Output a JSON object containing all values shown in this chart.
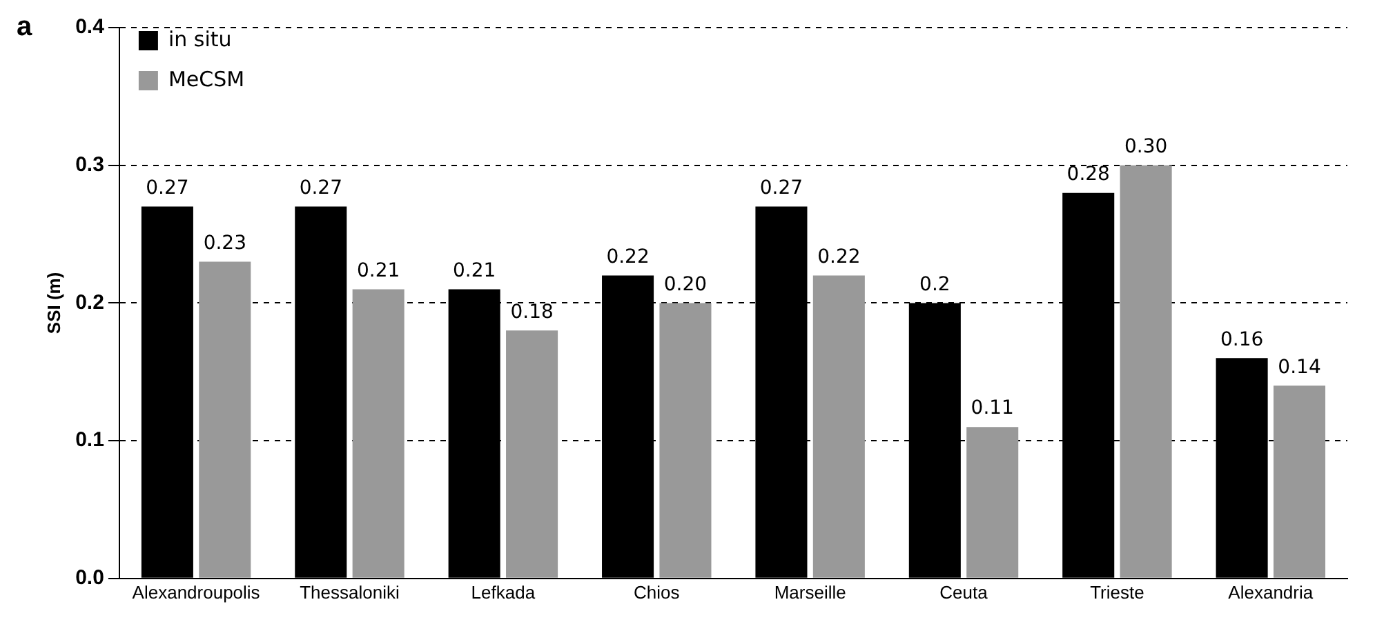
{
  "chart_data": {
    "type": "bar",
    "ylabel": "SSI (m)",
    "annotations": [
      "a"
    ],
    "categories": [
      "Alexandroupolis",
      "Thessaloniki",
      "Lefkada",
      "Chios",
      "Marseille",
      "Ceuta",
      "Trieste",
      "Alexandria"
    ],
    "series": [
      {
        "name": "in situ",
        "color": "#000000",
        "values": [
          0.27,
          0.27,
          0.21,
          0.22,
          0.27,
          0.2,
          0.28,
          0.16
        ],
        "value_labels": [
          "0.27",
          "0.27",
          "0.21",
          "0.22",
          "0.27",
          "0.2",
          "0.28",
          "0.16"
        ]
      },
      {
        "name": "MeCSM",
        "color": "#999999",
        "values": [
          0.23,
          0.21,
          0.18,
          0.2,
          0.22,
          0.11,
          0.3,
          0.14
        ],
        "value_labels": [
          "0.23",
          "0.21",
          "0.18",
          "0.20",
          "0.22",
          "0.11",
          "0.30",
          "0.14"
        ]
      }
    ],
    "ylim": [
      0,
      0.4
    ],
    "yticks": [
      {
        "value": 0,
        "label": "0.0"
      },
      {
        "value": 0.1,
        "label": "0.1"
      },
      {
        "value": 0.2,
        "label": "0.2"
      },
      {
        "value": 0.3,
        "label": "0.3"
      },
      {
        "value": 0.4,
        "label": "0.4"
      }
    ],
    "grid": "y",
    "legend": "top left",
    "line_style": "dashed"
  }
}
